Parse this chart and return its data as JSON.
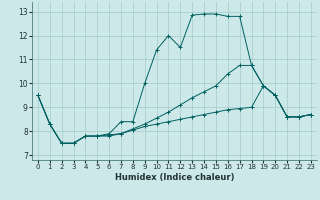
{
  "xlabel": "Humidex (Indice chaleur)",
  "bg_color": "#cce8e8",
  "grid_color": "#aacfcf",
  "line_color": "#006060",
  "xlim": [
    -0.5,
    23.5
  ],
  "ylim": [
    6.8,
    13.4
  ],
  "xticks": [
    0,
    1,
    2,
    3,
    4,
    5,
    6,
    7,
    8,
    9,
    10,
    11,
    12,
    13,
    14,
    15,
    16,
    17,
    18,
    19,
    20,
    21,
    22,
    23
  ],
  "yticks": [
    7,
    8,
    9,
    10,
    11,
    12,
    13
  ],
  "series1": [
    9.5,
    8.3,
    7.5,
    7.5,
    7.8,
    7.8,
    7.9,
    8.4,
    8.4,
    10.0,
    11.4,
    12.0,
    11.5,
    12.85,
    12.9,
    12.9,
    12.8,
    12.8,
    10.75,
    9.9,
    9.5,
    8.6,
    8.6,
    8.7
  ],
  "series2": [
    9.5,
    8.3,
    7.5,
    7.5,
    7.8,
    7.8,
    7.85,
    7.9,
    8.1,
    8.3,
    8.55,
    8.8,
    9.1,
    9.4,
    9.65,
    9.9,
    10.4,
    10.75,
    10.75,
    9.9,
    9.5,
    8.6,
    8.6,
    8.7
  ],
  "series3": [
    9.5,
    8.3,
    7.5,
    7.5,
    7.8,
    7.8,
    7.8,
    7.9,
    8.05,
    8.2,
    8.3,
    8.4,
    8.5,
    8.6,
    8.7,
    8.8,
    8.9,
    8.95,
    9.0,
    9.9,
    9.5,
    8.6,
    8.6,
    8.7
  ]
}
